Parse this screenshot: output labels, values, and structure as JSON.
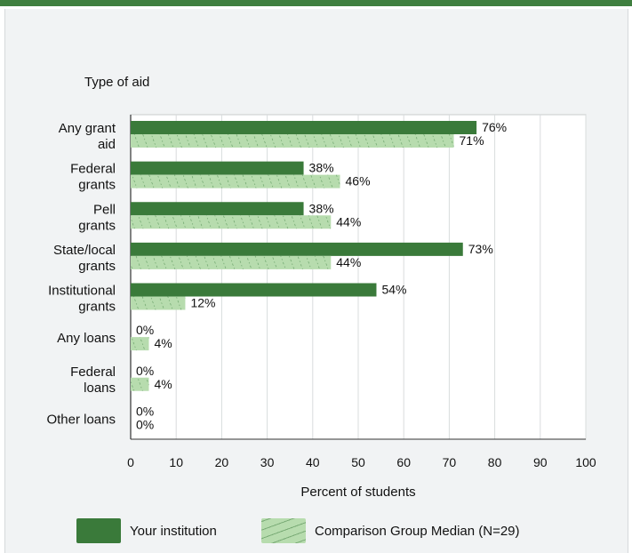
{
  "colors": {
    "topbar": "#3f7f3f",
    "panel_bg": "#f1f3f4",
    "institution": "#3a7a3a",
    "comparison": "#b7dcae",
    "comparison_hatch": "#5f9a5f",
    "grid": "#d9dcdd"
  },
  "chart_data": {
    "type": "bar",
    "orientation": "horizontal",
    "title": "Type of aid",
    "xlabel": "Percent of students",
    "xlim": [
      0,
      100
    ],
    "xticks": [
      "0",
      "10",
      "20",
      "30",
      "40",
      "50",
      "60",
      "70",
      "80",
      "90",
      "100"
    ],
    "grid": true,
    "legend_position": "bottom",
    "categories": [
      [
        "Any grant",
        "aid"
      ],
      [
        "Federal",
        "grants"
      ],
      [
        "Pell",
        "grants"
      ],
      [
        "State/local",
        "grants"
      ],
      [
        "Institutional",
        "grants"
      ],
      [
        "Any loans"
      ],
      [
        "Federal",
        "loans"
      ],
      [
        "Other loans"
      ]
    ],
    "series": [
      {
        "name": "Your institution",
        "values": [
          76,
          38,
          38,
          73,
          54,
          0,
          0,
          0
        ]
      },
      {
        "name": "Comparison Group Median (N=29)",
        "values": [
          71,
          46,
          44,
          44,
          12,
          4,
          4,
          0
        ]
      }
    ]
  }
}
